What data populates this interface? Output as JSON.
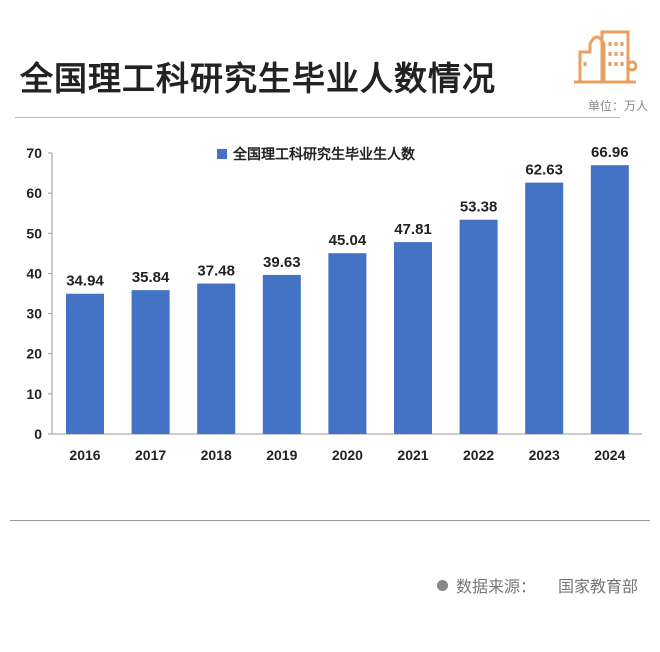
{
  "title": "全国理工科研究生毕业人数情况",
  "unit_label": "单位：万人",
  "source": {
    "label": "数据来源：",
    "value": "国家教育部"
  },
  "icons": {
    "header": "city-buildings-icon",
    "source": "bullet-dot-icon"
  },
  "colors": {
    "bar": "#4472C4",
    "icon": "#E8A060"
  },
  "chart_data": {
    "type": "bar",
    "categories": [
      "2016",
      "2017",
      "2018",
      "2019",
      "2020",
      "2021",
      "2022",
      "2023",
      "2024"
    ],
    "series": [
      {
        "name": "全国理工科研究生毕业生人数",
        "values": [
          34.94,
          35.84,
          37.48,
          39.63,
          45.04,
          47.81,
          53.38,
          62.63,
          66.96
        ]
      }
    ],
    "value_labels": [
      "34.94",
      "35.84",
      "37.48",
      "39.63",
      "45.04",
      "47.81",
      "53.38",
      "62.63",
      "66.96"
    ],
    "ylim": [
      0,
      70
    ],
    "yticks": [
      "0",
      "10",
      "20",
      "30",
      "40",
      "50",
      "60",
      "70"
    ],
    "legend": "top-center",
    "grid": false
  }
}
